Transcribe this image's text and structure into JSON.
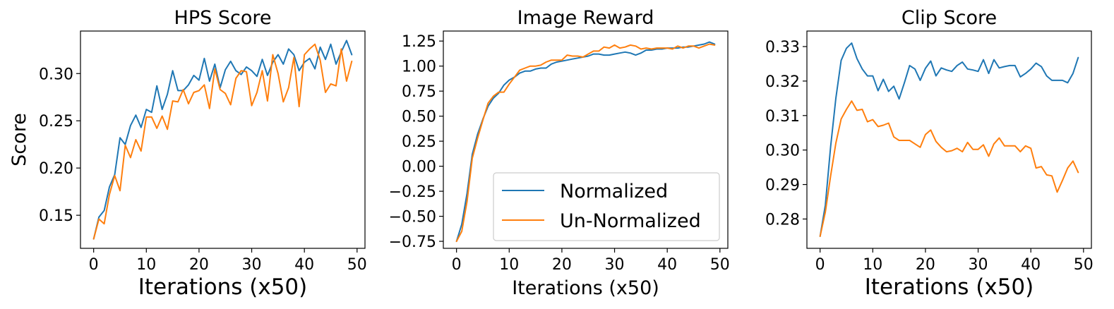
{
  "colors": {
    "normalized": "#1f77b4",
    "unnormalized": "#ff7f0e"
  },
  "chart_data": [
    {
      "type": "line",
      "title": "HPS Score",
      "xlabel": "Iterations (x50)",
      "ylabel": "Score",
      "xlim": [
        -2.5,
        51.5
      ],
      "ylim": [
        0.115,
        0.345
      ],
      "xticks": [
        0,
        10,
        20,
        30,
        40,
        50
      ],
      "yticks": [
        0.15,
        0.2,
        0.25,
        0.3
      ],
      "ytick_labels": [
        "0.15",
        "0.20",
        "0.25",
        "0.30"
      ],
      "legend": null,
      "series": [
        {
          "name": "Normalized",
          "color": "#1f77b4",
          "values": [
            0.125,
            0.148,
            0.155,
            0.18,
            0.193,
            0.232,
            0.225,
            0.245,
            0.256,
            0.243,
            0.262,
            0.259,
            0.287,
            0.262,
            0.278,
            0.303,
            0.282,
            0.282,
            0.288,
            0.298,
            0.293,
            0.316,
            0.292,
            0.31,
            0.285,
            0.304,
            0.313,
            0.303,
            0.299,
            0.307,
            0.303,
            0.297,
            0.315,
            0.298,
            0.312,
            0.32,
            0.31,
            0.326,
            0.32,
            0.303,
            0.312,
            0.316,
            0.305,
            0.328,
            0.315,
            0.331,
            0.31,
            0.323,
            0.335,
            0.32
          ]
        },
        {
          "name": "Un-Normalized",
          "color": "#ff7f0e",
          "values": [
            0.125,
            0.146,
            0.141,
            0.172,
            0.192,
            0.176,
            0.224,
            0.211,
            0.23,
            0.218,
            0.254,
            0.254,
            0.242,
            0.255,
            0.241,
            0.271,
            0.27,
            0.283,
            0.268,
            0.28,
            0.282,
            0.288,
            0.263,
            0.305,
            0.283,
            0.279,
            0.267,
            0.295,
            0.303,
            0.302,
            0.266,
            0.28,
            0.303,
            0.271,
            0.32,
            0.3,
            0.27,
            0.285,
            0.317,
            0.265,
            0.32,
            0.326,
            0.331,
            0.314,
            0.28,
            0.289,
            0.287,
            0.326,
            0.292,
            0.313
          ]
        }
      ]
    },
    {
      "type": "line",
      "title": "Image Reward",
      "xlabel": "Iterations (x50)",
      "ylabel": "",
      "xlim": [
        -2.5,
        51.5
      ],
      "ylim": [
        -0.82,
        1.35
      ],
      "xticks": [
        0,
        10,
        20,
        30,
        40,
        50
      ],
      "yticks": [
        -0.75,
        -0.5,
        -0.25,
        0.0,
        0.25,
        0.5,
        0.75,
        1.0,
        1.25
      ],
      "ytick_labels": [
        "−0.75",
        "−0.50",
        "−0.25",
        "0.00",
        "0.25",
        "0.50",
        "0.75",
        "1.00",
        "1.25"
      ],
      "legend": {
        "placement": "lower-right",
        "entries": [
          "Normalized",
          "Un-Normalized"
        ]
      },
      "series": [
        {
          "name": "Normalized",
          "color": "#1f77b4",
          "values": [
            -0.75,
            -0.58,
            -0.27,
            0.12,
            0.32,
            0.47,
            0.6,
            0.68,
            0.73,
            0.81,
            0.86,
            0.89,
            0.93,
            0.95,
            0.95,
            0.97,
            0.98,
            0.98,
            1.02,
            1.04,
            1.05,
            1.06,
            1.07,
            1.08,
            1.09,
            1.1,
            1.12,
            1.12,
            1.11,
            1.11,
            1.12,
            1.13,
            1.14,
            1.13,
            1.11,
            1.13,
            1.16,
            1.16,
            1.17,
            1.17,
            1.18,
            1.18,
            1.18,
            1.19,
            1.19,
            1.2,
            1.21,
            1.22,
            1.24,
            1.22
          ]
        },
        {
          "name": "Un-Normalized",
          "color": "#ff7f0e",
          "values": [
            -0.75,
            -0.65,
            -0.35,
            0.08,
            0.28,
            0.46,
            0.63,
            0.7,
            0.74,
            0.74,
            0.82,
            0.89,
            0.96,
            0.98,
            1.0,
            1.0,
            1.01,
            1.04,
            1.06,
            1.06,
            1.06,
            1.11,
            1.1,
            1.1,
            1.09,
            1.12,
            1.15,
            1.15,
            1.19,
            1.18,
            1.21,
            1.18,
            1.19,
            1.21,
            1.2,
            1.17,
            1.18,
            1.17,
            1.18,
            1.18,
            1.18,
            1.17,
            1.2,
            1.18,
            1.2,
            1.2,
            1.18,
            1.2,
            1.22,
            1.21
          ]
        }
      ]
    },
    {
      "type": "line",
      "title": "Clip Score",
      "xlabel": "Iterations (x50)",
      "ylabel": "",
      "xlim": [
        -2.5,
        51.5
      ],
      "ylim": [
        0.2715,
        0.3345
      ],
      "xticks": [
        0,
        10,
        20,
        30,
        40,
        50
      ],
      "yticks": [
        0.28,
        0.29,
        0.3,
        0.31,
        0.32,
        0.33
      ],
      "ytick_labels": [
        "0.28",
        "0.29",
        "0.30",
        "0.31",
        "0.32",
        "0.33"
      ],
      "legend": null,
      "series": [
        {
          "name": "Normalized",
          "color": "#1f77b4",
          "values": [
            0.275,
            0.284,
            0.301,
            0.315,
            0.326,
            0.3295,
            0.331,
            0.3265,
            0.3235,
            0.3215,
            0.3215,
            0.3172,
            0.3205,
            0.317,
            0.3185,
            0.3148,
            0.3195,
            0.3245,
            0.3235,
            0.3202,
            0.3237,
            0.3258,
            0.3215,
            0.3238,
            0.3232,
            0.3228,
            0.3245,
            0.3255,
            0.3235,
            0.3232,
            0.3228,
            0.3262,
            0.3222,
            0.3262,
            0.3238,
            0.3242,
            0.3245,
            0.3245,
            0.3212,
            0.3222,
            0.3235,
            0.3252,
            0.3242,
            0.3215,
            0.3202,
            0.3202,
            0.3202,
            0.3195,
            0.3222,
            0.3268
          ]
        },
        {
          "name": "Un-Normalized",
          "color": "#ff7f0e",
          "values": [
            0.275,
            0.282,
            0.2925,
            0.302,
            0.309,
            0.3118,
            0.3142,
            0.3115,
            0.3118,
            0.3082,
            0.3088,
            0.3068,
            0.3072,
            0.3078,
            0.3038,
            0.3028,
            0.3028,
            0.3028,
            0.3018,
            0.3008,
            0.3045,
            0.3058,
            0.3025,
            0.3008,
            0.2995,
            0.2998,
            0.3005,
            0.2995,
            0.3022,
            0.3002,
            0.3002,
            0.3015,
            0.2982,
            0.3018,
            0.3035,
            0.3012,
            0.3012,
            0.3012,
            0.2995,
            0.3012,
            0.3005,
            0.2948,
            0.2952,
            0.2928,
            0.2925,
            0.2878,
            0.2912,
            0.2948,
            0.2968,
            0.2935
          ]
        }
      ]
    }
  ]
}
